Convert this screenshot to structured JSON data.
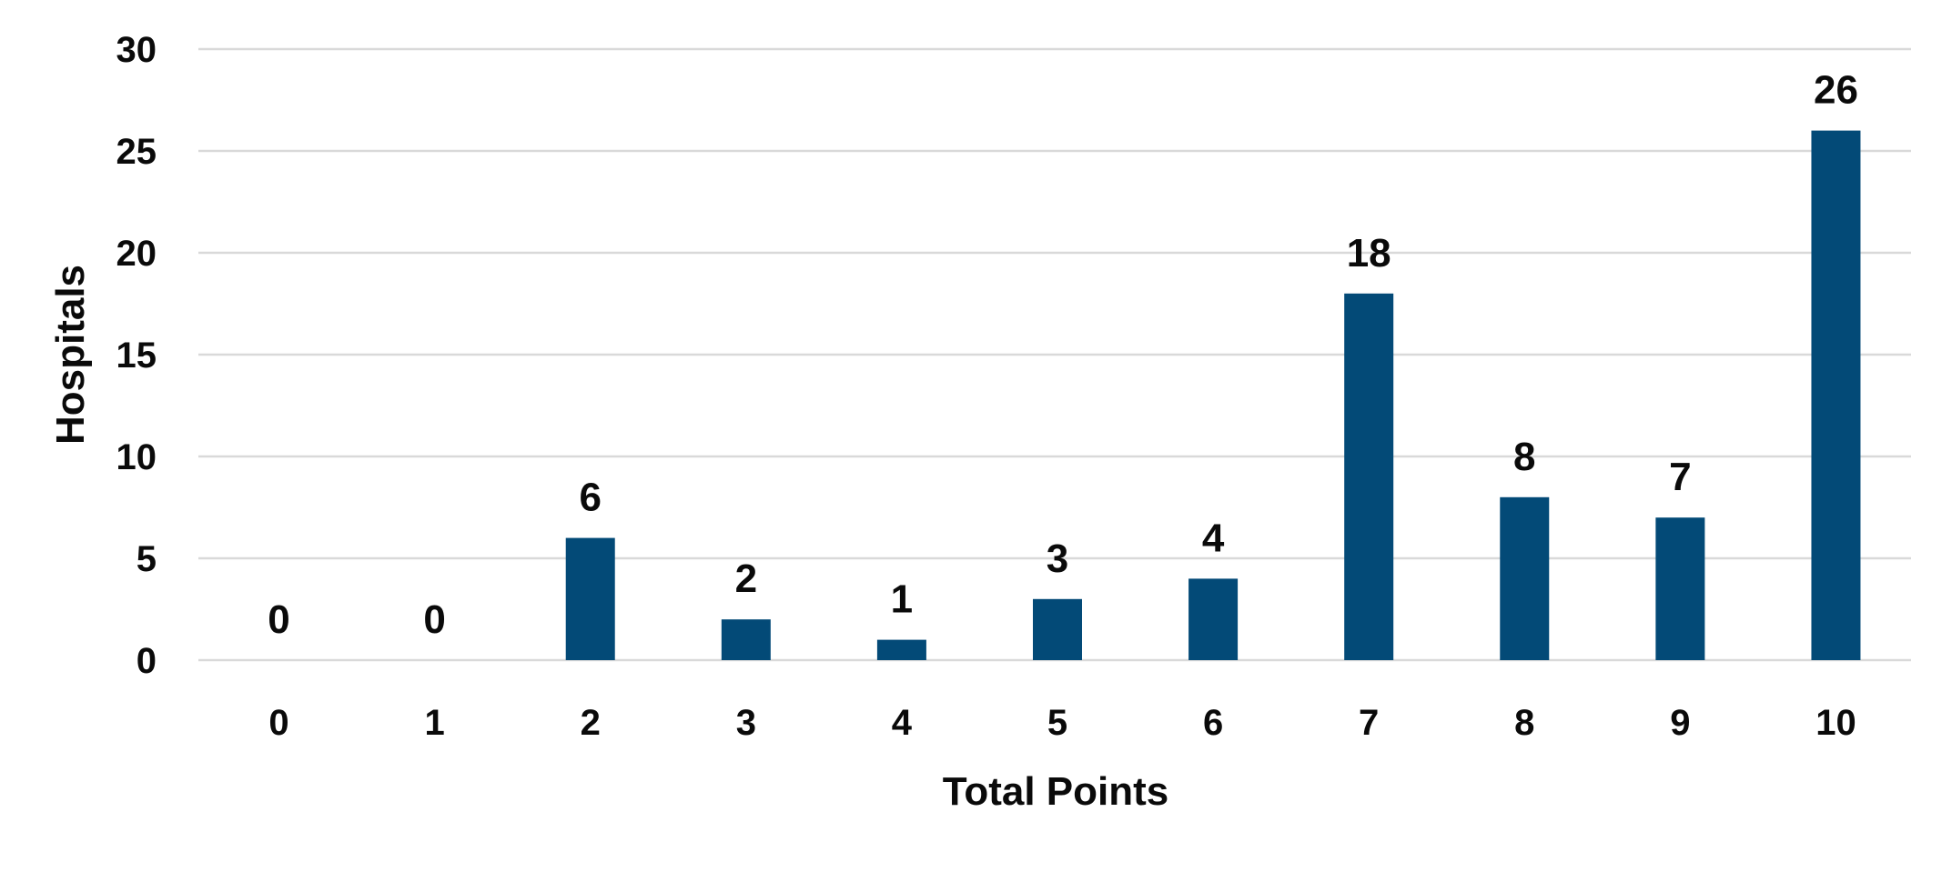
{
  "chart_data": {
    "type": "bar",
    "categories": [
      "0",
      "1",
      "2",
      "3",
      "4",
      "5",
      "6",
      "7",
      "8",
      "9",
      "10"
    ],
    "series": [
      {
        "values": [
          0,
          0,
          6,
          2,
          1,
          3,
          4,
          18,
          8,
          7,
          26
        ]
      }
    ],
    "data_labels": [
      "0",
      "0",
      "6",
      "2",
      "1",
      "3",
      "4",
      "18",
      "8",
      "7",
      "26"
    ],
    "xlabel": "Total Points",
    "ylabel": "Hospitals",
    "ylim": [
      0,
      30
    ],
    "yticks": [
      "0",
      "5",
      "10",
      "15",
      "20",
      "25",
      "30"
    ],
    "grid": true,
    "legend": "none",
    "colors": {
      "bar": "#034a77",
      "grid": "#d9d9d9",
      "text": "#0a0a0a"
    }
  }
}
